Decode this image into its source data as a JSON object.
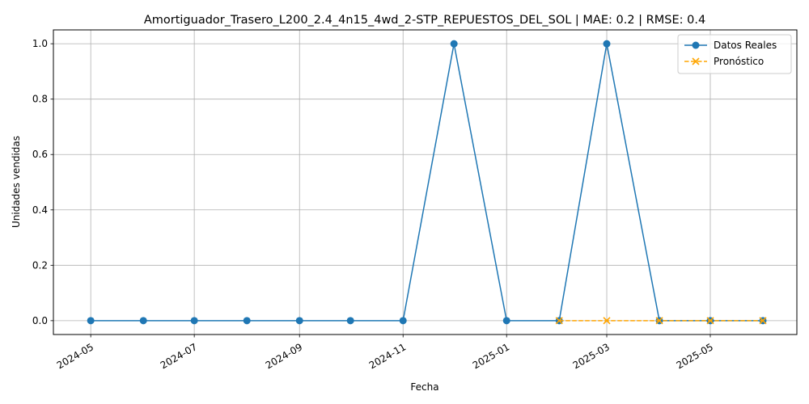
{
  "chart_data": {
    "type": "line",
    "title": "Amortiguador_Trasero_L200_2.4_4n15_4wd_2-STP_REPUESTOS_DEL_SOL | MAE: 0.2 | RMSE: 0.4",
    "xlabel": "Fecha",
    "ylabel": "Unidades vendidas",
    "xlim": [
      "2024-04-09",
      "2025-06-21"
    ],
    "ylim": [
      -0.05,
      1.05
    ],
    "x_ticks": [
      "2024-05",
      "2024-07",
      "2024-09",
      "2024-11",
      "2025-01",
      "2025-03",
      "2025-05"
    ],
    "y_ticks": [
      "0.0",
      "0.2",
      "0.4",
      "0.6",
      "0.8",
      "1.0"
    ],
    "grid": true,
    "legend_position": "top-right",
    "series": [
      {
        "name": "Datos Reales",
        "color": "#1f77b4",
        "marker": "circle",
        "linestyle": "solid",
        "x": [
          "2024-05-01",
          "2024-06-01",
          "2024-07-01",
          "2024-08-01",
          "2024-09-01",
          "2024-10-01",
          "2024-11-01",
          "2024-12-01",
          "2025-01-01",
          "2025-02-01",
          "2025-03-01",
          "2025-04-01",
          "2025-05-01",
          "2025-06-01"
        ],
        "values": [
          0,
          0,
          0,
          0,
          0,
          0,
          0,
          1,
          0,
          0,
          1,
          0,
          0,
          0
        ]
      },
      {
        "name": "Pronóstico",
        "color": "#ffa500",
        "marker": "x",
        "linestyle": "dashed",
        "x": [
          "2025-02-01",
          "2025-03-01",
          "2025-04-01",
          "2025-05-01",
          "2025-06-01"
        ],
        "values": [
          0,
          0,
          0,
          0,
          0
        ]
      }
    ]
  }
}
